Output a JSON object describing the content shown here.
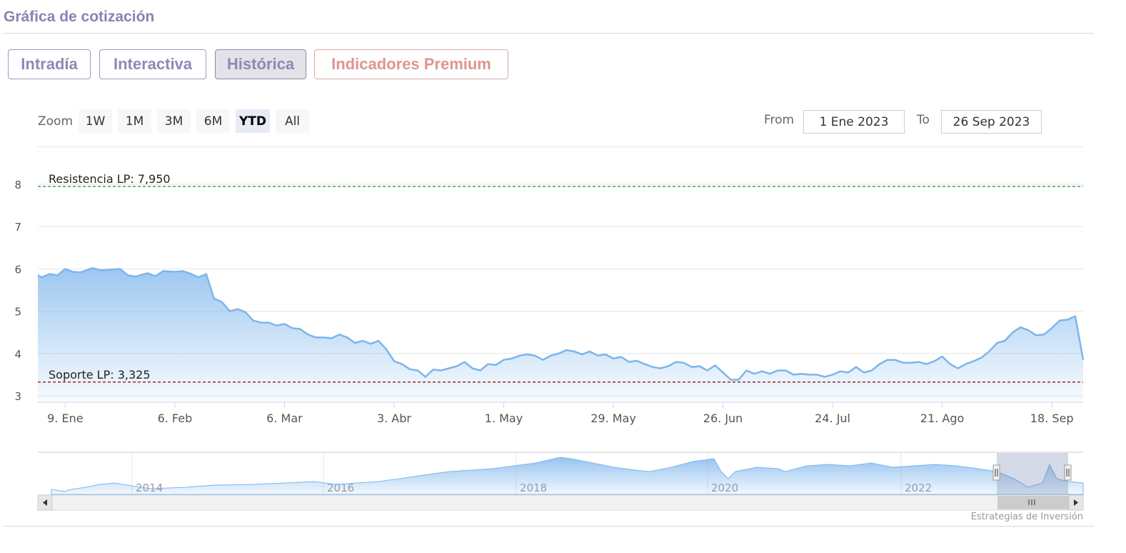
{
  "header": {
    "title": "Gráfica de cotización"
  },
  "tabs": [
    {
      "label": "Intradía",
      "active": false
    },
    {
      "label": "Interactiva",
      "active": false
    },
    {
      "label": "Histórica",
      "active": true
    },
    {
      "label": "Indicadores Premium",
      "active": false
    }
  ],
  "range_selector": {
    "zoom_label": "Zoom",
    "buttons": [
      "1W",
      "1M",
      "3M",
      "6M",
      "YTD",
      "All"
    ],
    "selected": "YTD",
    "from_label": "From",
    "from_value": "1 Ene 2023",
    "to_label": "To",
    "to_value": "26 Sep 2023"
  },
  "credit": "Estrategias de Inversión",
  "colors": {
    "line": "#7cb5ec",
    "resistance": "#008000",
    "support": "#8b0000",
    "accent": "#8a82b2"
  },
  "chart_data": {
    "type": "area",
    "title": "",
    "ylim": [
      3,
      8
    ],
    "y_ticks": [
      3,
      4,
      5,
      6,
      7,
      8
    ],
    "x_range": [
      "2023-01-02",
      "2023-09-26"
    ],
    "x_ticks": [
      {
        "date": "2023-01-09",
        "label": "9. Ene"
      },
      {
        "date": "2023-02-06",
        "label": "6. Feb"
      },
      {
        "date": "2023-03-06",
        "label": "6. Mar"
      },
      {
        "date": "2023-04-03",
        "label": "3. Abr"
      },
      {
        "date": "2023-05-01",
        "label": "1. May"
      },
      {
        "date": "2023-05-29",
        "label": "29. May"
      },
      {
        "date": "2023-06-26",
        "label": "26. Jun"
      },
      {
        "date": "2023-07-24",
        "label": "24. Jul"
      },
      {
        "date": "2023-08-21",
        "label": "21. Ago"
      },
      {
        "date": "2023-09-18",
        "label": "18. Sep"
      }
    ],
    "plot_lines": [
      {
        "label": "Resistencia LP: 7,950",
        "value": 7.95,
        "style": "dashed",
        "color": "#008000"
      },
      {
        "label": "Soporte LP: 3,325",
        "value": 3.325,
        "style": "dashed",
        "color": "#8b0000"
      }
    ],
    "series": [
      {
        "points": [
          [
            "2023-01-02",
            5.85
          ],
          [
            "2023-01-03",
            5.8
          ],
          [
            "2023-01-05",
            5.88
          ],
          [
            "2023-01-07",
            5.85
          ],
          [
            "2023-01-09",
            6.0
          ],
          [
            "2023-01-11",
            5.93
          ],
          [
            "2023-01-13",
            5.92
          ],
          [
            "2023-01-16",
            6.02
          ],
          [
            "2023-01-18",
            5.97
          ],
          [
            "2023-01-20",
            5.98
          ],
          [
            "2023-01-23",
            6.0
          ],
          [
            "2023-01-25",
            5.85
          ],
          [
            "2023-01-27",
            5.82
          ],
          [
            "2023-01-30",
            5.9
          ],
          [
            "2023-02-01",
            5.83
          ],
          [
            "2023-02-03",
            5.95
          ],
          [
            "2023-02-06",
            5.93
          ],
          [
            "2023-02-08",
            5.95
          ],
          [
            "2023-02-10",
            5.89
          ],
          [
            "2023-02-12",
            5.8
          ],
          [
            "2023-02-14",
            5.88
          ],
          [
            "2023-02-16",
            5.3
          ],
          [
            "2023-02-18",
            5.22
          ],
          [
            "2023-02-20",
            5.0
          ],
          [
            "2023-02-22",
            5.05
          ],
          [
            "2023-02-24",
            4.98
          ],
          [
            "2023-02-26",
            4.78
          ],
          [
            "2023-02-28",
            4.73
          ],
          [
            "2023-03-02",
            4.73
          ],
          [
            "2023-03-04",
            4.66
          ],
          [
            "2023-03-06",
            4.7
          ],
          [
            "2023-03-08",
            4.6
          ],
          [
            "2023-03-10",
            4.58
          ],
          [
            "2023-03-12",
            4.45
          ],
          [
            "2023-03-14",
            4.38
          ],
          [
            "2023-03-16",
            4.38
          ],
          [
            "2023-03-18",
            4.36
          ],
          [
            "2023-03-20",
            4.45
          ],
          [
            "2023-03-22",
            4.38
          ],
          [
            "2023-03-24",
            4.25
          ],
          [
            "2023-03-26",
            4.3
          ],
          [
            "2023-03-28",
            4.23
          ],
          [
            "2023-03-30",
            4.3
          ],
          [
            "2023-04-01",
            4.1
          ],
          [
            "2023-04-03",
            3.82
          ],
          [
            "2023-04-05",
            3.75
          ],
          [
            "2023-04-07",
            3.63
          ],
          [
            "2023-04-09",
            3.6
          ],
          [
            "2023-04-11",
            3.45
          ],
          [
            "2023-04-13",
            3.62
          ],
          [
            "2023-04-15",
            3.6
          ],
          [
            "2023-04-17",
            3.65
          ],
          [
            "2023-04-19",
            3.7
          ],
          [
            "2023-04-21",
            3.8
          ],
          [
            "2023-04-23",
            3.65
          ],
          [
            "2023-04-25",
            3.6
          ],
          [
            "2023-04-27",
            3.75
          ],
          [
            "2023-04-29",
            3.73
          ],
          [
            "2023-05-01",
            3.85
          ],
          [
            "2023-05-03",
            3.88
          ],
          [
            "2023-05-05",
            3.95
          ],
          [
            "2023-05-07",
            3.98
          ],
          [
            "2023-05-09",
            3.95
          ],
          [
            "2023-05-11",
            3.85
          ],
          [
            "2023-05-13",
            3.95
          ],
          [
            "2023-05-15",
            4.0
          ],
          [
            "2023-05-17",
            4.08
          ],
          [
            "2023-05-19",
            4.05
          ],
          [
            "2023-05-21",
            3.98
          ],
          [
            "2023-05-23",
            4.05
          ],
          [
            "2023-05-25",
            3.95
          ],
          [
            "2023-05-27",
            3.98
          ],
          [
            "2023-05-29",
            3.88
          ],
          [
            "2023-05-31",
            3.92
          ],
          [
            "2023-06-02",
            3.8
          ],
          [
            "2023-06-04",
            3.83
          ],
          [
            "2023-06-06",
            3.75
          ],
          [
            "2023-06-08",
            3.68
          ],
          [
            "2023-06-10",
            3.65
          ],
          [
            "2023-06-12",
            3.7
          ],
          [
            "2023-06-14",
            3.8
          ],
          [
            "2023-06-16",
            3.78
          ],
          [
            "2023-06-18",
            3.68
          ],
          [
            "2023-06-20",
            3.7
          ],
          [
            "2023-06-22",
            3.6
          ],
          [
            "2023-06-24",
            3.72
          ],
          [
            "2023-06-26",
            3.55
          ],
          [
            "2023-06-28",
            3.38
          ],
          [
            "2023-06-30",
            3.38
          ],
          [
            "2023-07-02",
            3.6
          ],
          [
            "2023-07-04",
            3.52
          ],
          [
            "2023-07-06",
            3.58
          ],
          [
            "2023-07-08",
            3.52
          ],
          [
            "2023-07-10",
            3.6
          ],
          [
            "2023-07-12",
            3.6
          ],
          [
            "2023-07-14",
            3.5
          ],
          [
            "2023-07-16",
            3.52
          ],
          [
            "2023-07-18",
            3.5
          ],
          [
            "2023-07-20",
            3.5
          ],
          [
            "2023-07-22",
            3.45
          ],
          [
            "2023-07-24",
            3.5
          ],
          [
            "2023-07-26",
            3.58
          ],
          [
            "2023-07-28",
            3.55
          ],
          [
            "2023-07-30",
            3.68
          ],
          [
            "2023-08-01",
            3.55
          ],
          [
            "2023-08-03",
            3.6
          ],
          [
            "2023-08-05",
            3.75
          ],
          [
            "2023-08-07",
            3.85
          ],
          [
            "2023-08-09",
            3.85
          ],
          [
            "2023-08-11",
            3.78
          ],
          [
            "2023-08-13",
            3.78
          ],
          [
            "2023-08-15",
            3.8
          ],
          [
            "2023-08-17",
            3.75
          ],
          [
            "2023-08-19",
            3.82
          ],
          [
            "2023-08-21",
            3.93
          ],
          [
            "2023-08-23",
            3.75
          ],
          [
            "2023-08-25",
            3.65
          ],
          [
            "2023-08-27",
            3.75
          ],
          [
            "2023-08-29",
            3.82
          ],
          [
            "2023-08-31",
            3.9
          ],
          [
            "2023-09-02",
            4.05
          ],
          [
            "2023-09-04",
            4.25
          ],
          [
            "2023-09-06",
            4.3
          ],
          [
            "2023-09-08",
            4.5
          ],
          [
            "2023-09-10",
            4.62
          ],
          [
            "2023-09-12",
            4.55
          ],
          [
            "2023-09-14",
            4.43
          ],
          [
            "2023-09-16",
            4.45
          ],
          [
            "2023-09-18",
            4.6
          ],
          [
            "2023-09-20",
            4.78
          ],
          [
            "2023-09-22",
            4.8
          ],
          [
            "2023-09-24",
            4.88
          ],
          [
            "2023-09-26",
            3.85
          ]
        ]
      }
    ]
  },
  "navigator": {
    "year_labels": [
      "2014",
      "2016",
      "2018",
      "2020",
      "2022"
    ],
    "selection": {
      "from": "1 Ene 2023",
      "to": "26 Sep 2023"
    }
  }
}
